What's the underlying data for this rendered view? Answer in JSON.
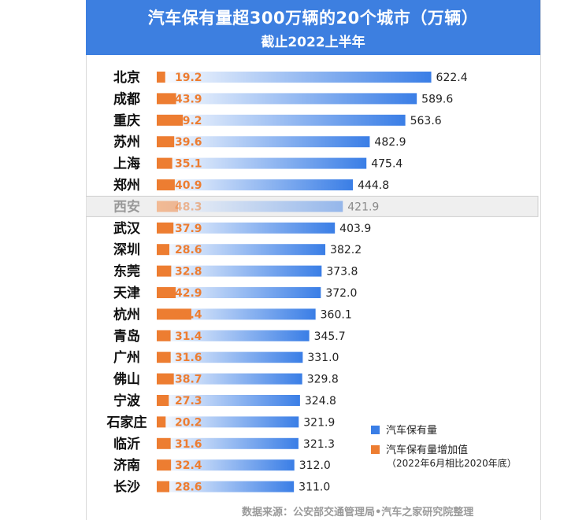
{
  "header": {
    "title": "汽车保有量超300万辆的20个城市（万辆）",
    "subtitle": "截止2022上半年"
  },
  "colors": {
    "header_bg": "#3d7fe0",
    "bar_blue": "#3a7ee6",
    "bar_blue_light": "#ffffff",
    "bar_orange": "#ed7d31",
    "highlight_bg": "#efefef"
  },
  "chart_data": {
    "type": "bar",
    "orientation": "horizontal",
    "categories": [
      "北京",
      "成都",
      "重庆",
      "苏州",
      "上海",
      "郑州",
      "西安",
      "武汉",
      "深圳",
      "东莞",
      "天津",
      "杭州",
      "青岛",
      "广州",
      "佛山",
      "宁波",
      "石家庄",
      "临沂",
      "济南",
      "长沙"
    ],
    "highlighted_category": "西安",
    "series": [
      {
        "name": "汽车保有量",
        "values": [
          622.4,
          589.6,
          563.6,
          482.9,
          475.4,
          444.8,
          421.9,
          403.9,
          382.2,
          373.8,
          372.0,
          360.1,
          345.7,
          331.0,
          329.8,
          324.8,
          321.9,
          321.3,
          312.0,
          311.0
        ],
        "labels": [
          "622.4",
          "589.6",
          "563.6",
          "482.9",
          "475.4",
          "444.8",
          "421.9",
          "403.9",
          "382.2",
          "373.8",
          "372.0",
          "360.1",
          "345.7",
          "331.0",
          "329.8",
          "324.8",
          "321.9",
          "321.3",
          "312.0",
          "311.0"
        ]
      },
      {
        "name": "汽车保有量增加值",
        "values": [
          19.2,
          43.9,
          59.2,
          39.6,
          35.1,
          40.9,
          48.3,
          37.9,
          28.6,
          32.8,
          42.9,
          78.4,
          31.4,
          31.6,
          38.7,
          27.3,
          20.2,
          31.6,
          32.4,
          28.6
        ],
        "labels": [
          "19.2",
          "43.9",
          "59.2",
          "39.6",
          "35.1",
          "40.9",
          "48.3",
          "37.9",
          "28.6",
          "32.8",
          "42.9",
          "78.4",
          "31.4",
          "31.6",
          "38.7",
          "27.3",
          "20.2",
          "31.6",
          "32.4",
          "28.6"
        ]
      }
    ],
    "legend": {
      "position": "bottom-right",
      "items": [
        {
          "label": "汽车保有量",
          "sublabel": ""
        },
        {
          "label": "汽车保有量增加值",
          "sublabel": "（2022年6月相比2020年底）"
        }
      ]
    },
    "grid": false
  },
  "footer": {
    "source": "数据来源：公安部交通管理局•汽车之家研究院整理"
  }
}
